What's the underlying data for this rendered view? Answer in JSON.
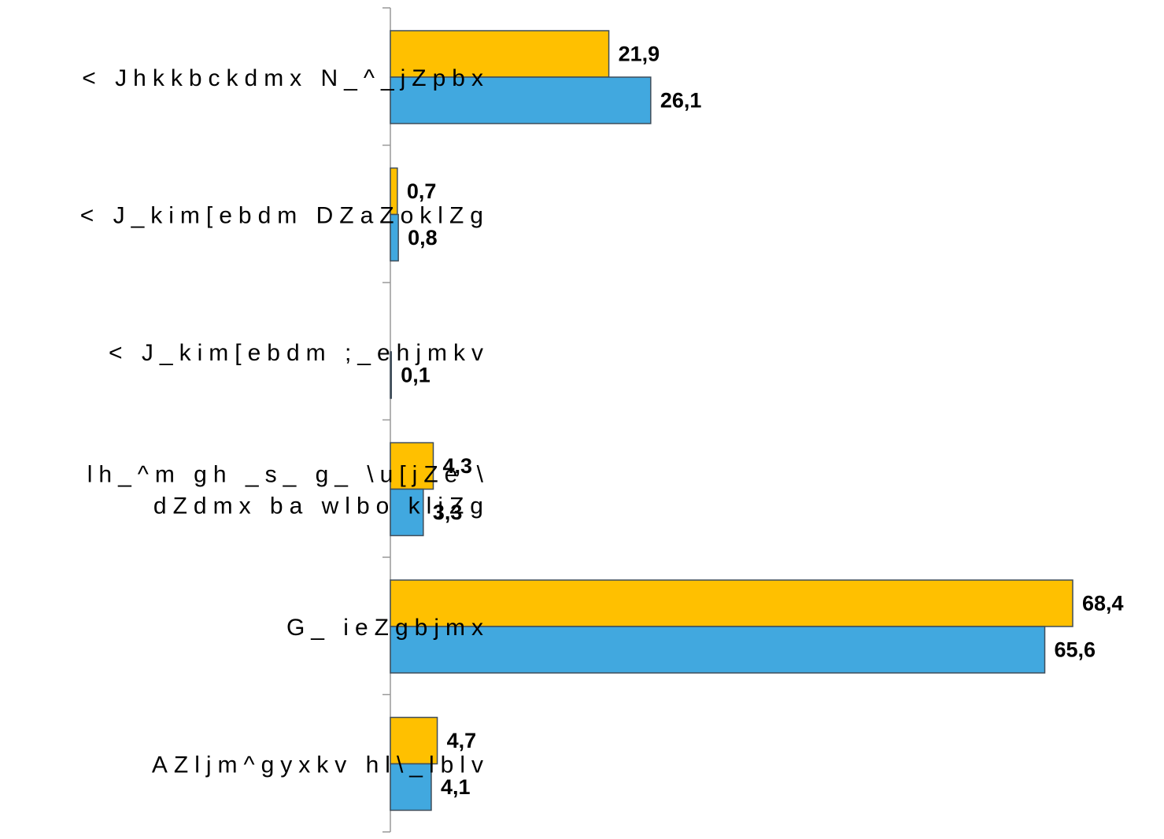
{
  "chart_data": {
    "type": "bar",
    "orientation": "horizontal",
    "categories": [
      [
        "< Jhkkbckdmx N_^_jZpbx"
      ],
      [
        "< J_kim[ebdm DZaZoklZg"
      ],
      [
        "< J_kim[ebdm ;_ehjmkv"
      ],
      [
        "lh_^m gh _s_ g_ \\u[jZe \\",
        "dZdmx ba wlbo kljZg"
      ],
      [
        "G_ ieZgbjmx"
      ],
      [
        "AZljm^gyxkv hl\\_lblv"
      ]
    ],
    "series": [
      {
        "values": [
          21.9,
          0.7,
          0.0,
          4.3,
          68.4,
          4.7
        ],
        "labels": [
          "21,9",
          "0,7",
          "",
          "4,3",
          "68,4",
          "4,7"
        ],
        "color": "#FFC000"
      },
      {
        "values": [
          26.1,
          0.8,
          0.1,
          3.3,
          65.6,
          4.1
        ],
        "labels": [
          "26,1",
          "0,8",
          "0,1",
          "3,3",
          "65,6",
          "4,1"
        ],
        "color": "#41A8DF"
      }
    ],
    "xlim": [
      0,
      70
    ],
    "grid": false,
    "legend": "none",
    "title": "",
    "xlabel": "",
    "ylabel": ""
  }
}
